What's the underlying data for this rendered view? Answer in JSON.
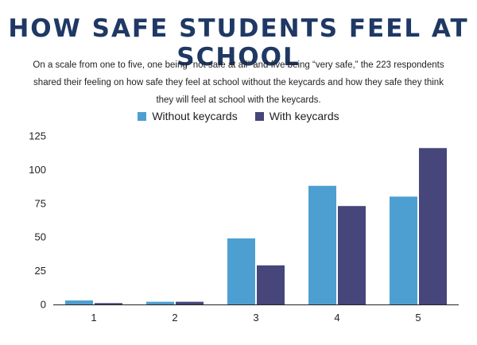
{
  "title": "HOW SAFE STUDENTS FEEL AT SCHOOL",
  "subtitle": "On a scale from one to five, one being “not safe at all” and five being “very safe,” the 223 respondents shared their feeling on how safe they feel at school without the keycards and how they safe they think they will feel at school with the keycards.",
  "colors": {
    "without": "#4e9fd1",
    "with": "#46467a",
    "title": "#1f3864"
  },
  "chart_data": {
    "type": "bar",
    "categories": [
      "1",
      "2",
      "3",
      "4",
      "5"
    ],
    "series": [
      {
        "name": "Without keycards",
        "values": [
          3,
          2,
          49,
          88,
          80
        ]
      },
      {
        "name": "With keycards",
        "values": [
          1,
          2,
          29,
          73,
          116
        ]
      }
    ],
    "yticks": [
      "0",
      "25",
      "50",
      "75",
      "100",
      "125"
    ],
    "ylim": [
      0,
      125
    ],
    "legend_position": "top-center",
    "grid": false
  }
}
